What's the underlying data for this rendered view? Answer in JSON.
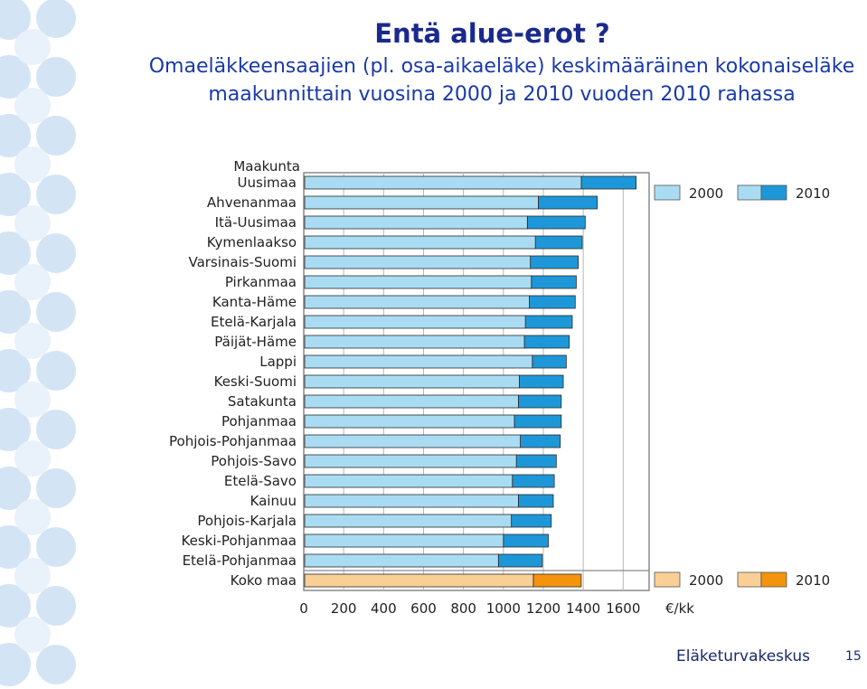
{
  "slide": {
    "title": "Entä alue-erot ?",
    "subtitle": "Omaeläkkeensaajien (pl. osa-aikaeläke) keskimääräinen kokonaiseläke maakunnittain vuosina 2000 ja 2010 vuoden 2010 rahassa",
    "footer_brand": "Eläketurvakeskus",
    "page_number": "15"
  },
  "colors": {
    "bar_2000": "#a9dcf2",
    "bar_2010": "#1e97d8",
    "bar_total_2000": "#f9cf96",
    "bar_total_2010": "#f3940c",
    "title": "#1a2a8c",
    "subtitle": "#1a3aa8",
    "decoration": "#cfe0f3"
  },
  "chart_data": {
    "type": "bar",
    "orientation": "horizontal",
    "category_header": "Maakunta",
    "categories": [
      "Uusimaa",
      "Ahvenanmaa",
      "Itä-Uusimaa",
      "Kymenlaakso",
      "Varsinais-Suomi",
      "Pirkanmaa",
      "Kanta-Häme",
      "Etelä-Karjala",
      "Päijät-Häme",
      "Lappi",
      "Keski-Suomi",
      "Satakunta",
      "Pohjanmaa",
      "Pohjois-Pohjanmaa",
      "Pohjois-Savo",
      "Etelä-Savo",
      "Kainuu",
      "Pohjois-Karjala",
      "Keski-Pohjanmaa",
      "Etelä-Pohjanmaa",
      "Koko maa"
    ],
    "series": [
      {
        "name": "2000",
        "values": [
          1390,
          1175,
          1120,
          1160,
          1135,
          1140,
          1130,
          1110,
          1105,
          1145,
          1080,
          1075,
          1055,
          1085,
          1065,
          1045,
          1075,
          1040,
          1000,
          975,
          1150
        ]
      },
      {
        "name": "2010",
        "values": [
          1665,
          1470,
          1410,
          1395,
          1375,
          1365,
          1360,
          1345,
          1330,
          1315,
          1300,
          1290,
          1290,
          1285,
          1265,
          1255,
          1250,
          1240,
          1225,
          1195,
          1390
        ]
      }
    ],
    "x_ticks": [
      "0",
      "200",
      "400",
      "600",
      "800",
      "1000",
      "1200",
      "1400",
      "1600"
    ],
    "xlim": [
      0,
      1730
    ],
    "xlabel": "€/kk",
    "legend": {
      "position": "right",
      "labels": [
        "2000",
        "2010"
      ]
    },
    "grid": true
  }
}
